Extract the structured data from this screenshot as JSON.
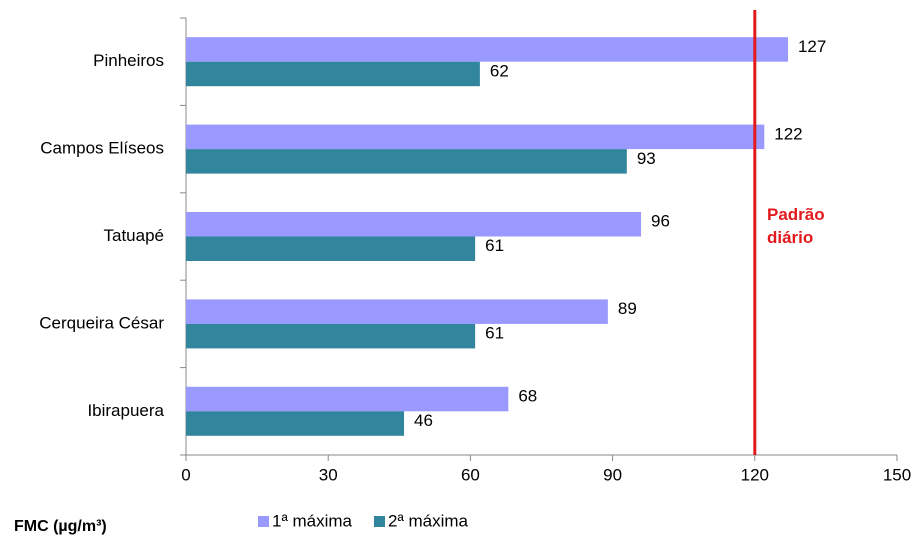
{
  "chart_data": {
    "type": "bar",
    "orientation": "horizontal",
    "categories": [
      "Pinheiros",
      "Campos Elíseos",
      "Tatuapé",
      "Cerqueira César",
      "Ibirapuera"
    ],
    "series": [
      {
        "name": "1ª máxima",
        "color": "#9999ff",
        "values": [
          127,
          122,
          96,
          89,
          68
        ]
      },
      {
        "name": "2ª máxima",
        "color": "#31859c",
        "values": [
          62,
          93,
          61,
          61,
          46
        ]
      }
    ],
    "xlim": [
      0,
      150
    ],
    "xticks": [
      0,
      30,
      60,
      90,
      120,
      150
    ],
    "x_label": "FMC (µg/m³)",
    "reference_line": {
      "value": 120,
      "label": "Padrão diário",
      "color": "#e31a1c"
    },
    "legend": "bottom"
  }
}
